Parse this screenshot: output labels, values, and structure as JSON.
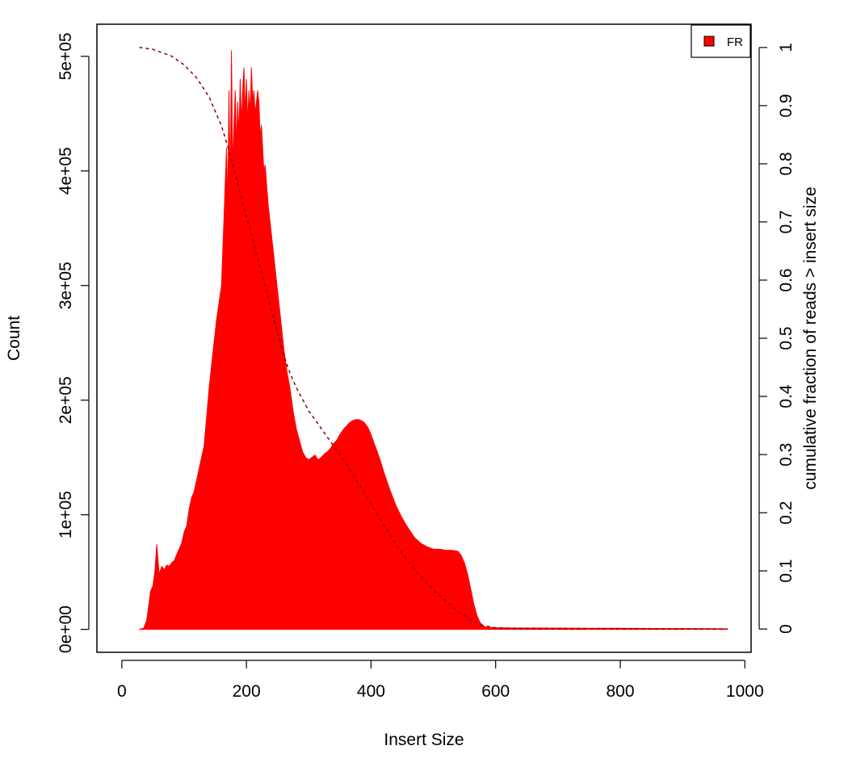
{
  "chart_data": {
    "type": "area",
    "title": "",
    "xlabel": "Insert Size",
    "ylabel": "Count",
    "y2label": "cumulative fraction of reads > insert size",
    "xlim": [
      -40,
      1010
    ],
    "ylim": [
      -20000,
      528000
    ],
    "y2lim": [
      -0.04,
      1.04
    ],
    "x_ticks": [
      0,
      200,
      400,
      600,
      800,
      1000
    ],
    "x_tick_labels": [
      "0",
      "200",
      "400",
      "600",
      "800",
      "1000"
    ],
    "y_ticks": [
      0,
      100000,
      200000,
      300000,
      400000,
      500000
    ],
    "y_tick_labels": [
      "0e+00",
      "1e+05",
      "2e+05",
      "3e+05",
      "4e+05",
      "5e+05"
    ],
    "y2_ticks": [
      0,
      0.1,
      0.2,
      0.3,
      0.4,
      0.5,
      0.6,
      0.7,
      0.8,
      0.9,
      1
    ],
    "y2_tick_labels": [
      "0",
      "0.1",
      "0.2",
      "0.3",
      "0.4",
      "0.5",
      "0.6",
      "0.7",
      "0.8",
      "0.9",
      "1"
    ],
    "grid": false,
    "legend": {
      "position": "top-right",
      "entries": [
        {
          "label": "FR",
          "color": "#ff0000"
        }
      ]
    },
    "series": [
      {
        "name": "FR",
        "color": "#ff0000",
        "axis": "left",
        "style": "filled-histogram",
        "x": [
          28,
          35,
          40,
          43,
          46,
          50,
          53,
          56,
          60,
          64,
          68,
          72,
          76,
          80,
          84,
          88,
          92,
          96,
          100,
          104,
          108,
          112,
          116,
          120,
          124,
          128,
          132,
          136,
          140,
          144,
          148,
          152,
          156,
          160,
          164,
          168,
          170,
          172,
          174,
          176,
          178,
          180,
          182,
          184,
          186,
          188,
          190,
          192,
          194,
          196,
          198,
          200,
          202,
          204,
          206,
          208,
          210,
          212,
          214,
          216,
          218,
          220,
          222,
          224,
          226,
          228,
          230,
          235,
          240,
          245,
          250,
          255,
          260,
          265,
          270,
          275,
          280,
          285,
          290,
          295,
          300,
          305,
          310,
          315,
          320,
          325,
          330,
          335,
          340,
          345,
          350,
          355,
          360,
          365,
          370,
          375,
          380,
          385,
          390,
          395,
          400,
          405,
          410,
          415,
          420,
          425,
          430,
          440,
          450,
          460,
          470,
          480,
          490,
          500,
          510,
          520,
          530,
          540,
          545,
          550,
          555,
          560,
          565,
          570,
          575,
          580,
          585,
          590,
          595,
          600,
          610,
          620,
          650,
          700,
          750,
          800,
          850,
          900,
          950,
          972
        ],
        "values": [
          0,
          1000,
          8000,
          20000,
          33000,
          38000,
          50000,
          74000,
          48000,
          55000,
          52000,
          56000,
          55000,
          58000,
          60000,
          65000,
          70000,
          75000,
          85000,
          90000,
          105000,
          115000,
          120000,
          130000,
          140000,
          150000,
          160000,
          185000,
          210000,
          230000,
          250000,
          270000,
          285000,
          300000,
          360000,
          420000,
          370000,
          470000,
          380000,
          505000,
          400000,
          440000,
          470000,
          420000,
          460000,
          430000,
          480000,
          440000,
          470000,
          490000,
          450000,
          480000,
          440000,
          470000,
          450000,
          490000,
          460000,
          470000,
          450000,
          460000,
          470000,
          460000,
          430000,
          440000,
          420000,
          400000,
          405000,
          370000,
          345000,
          320000,
          295000,
          270000,
          245000,
          225000,
          210000,
          190000,
          175000,
          165000,
          155000,
          150000,
          148000,
          150000,
          152000,
          148000,
          150000,
          153000,
          155000,
          158000,
          162000,
          165000,
          170000,
          174000,
          177000,
          180000,
          182000,
          183000,
          183000,
          182000,
          180000,
          176000,
          170000,
          162000,
          155000,
          147000,
          138000,
          130000,
          122000,
          108000,
          97000,
          88000,
          80000,
          75000,
          72000,
          70000,
          70000,
          69000,
          69000,
          68000,
          64000,
          58000,
          48000,
          35000,
          22000,
          12000,
          6000,
          3000,
          2000,
          1800,
          1600,
          1500,
          1400,
          1300,
          1200,
          1100,
          1000,
          900,
          800,
          700,
          600,
          500
        ]
      },
      {
        "name": "",
        "color": "#8b0000",
        "axis": "right",
        "style": "dashed-line",
        "x": [
          28,
          50,
          80,
          100,
          120,
          140,
          160,
          170,
          180,
          190,
          200,
          210,
          220,
          230,
          240,
          250,
          260,
          270,
          280,
          290,
          300,
          320,
          340,
          360,
          380,
          400,
          420,
          440,
          460,
          480,
          500,
          520,
          540,
          560,
          580,
          600,
          620,
          650,
          700,
          800,
          900,
          972
        ],
        "values": [
          1.0,
          0.997,
          0.985,
          0.97,
          0.948,
          0.915,
          0.865,
          0.83,
          0.79,
          0.75,
          0.71,
          0.67,
          0.63,
          0.59,
          0.55,
          0.51,
          0.47,
          0.44,
          0.415,
          0.395,
          0.375,
          0.345,
          0.315,
          0.285,
          0.25,
          0.215,
          0.18,
          0.145,
          0.115,
          0.09,
          0.067,
          0.048,
          0.03,
          0.016,
          0.006,
          0.002,
          0.0012,
          0.0008,
          0.0005,
          0.0003,
          0.0002,
          0.0
        ]
      }
    ]
  }
}
